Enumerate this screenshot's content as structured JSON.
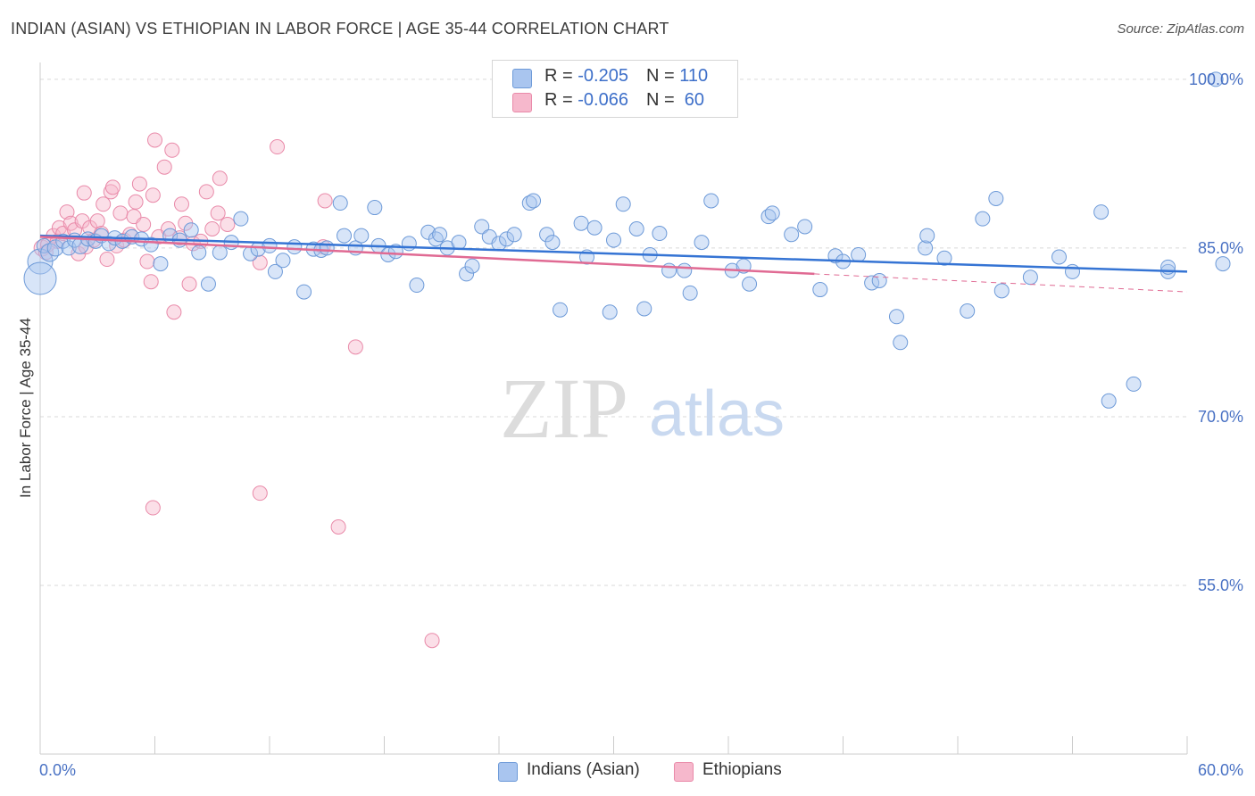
{
  "title": "INDIAN (ASIAN) VS ETHIOPIAN IN LABOR FORCE | AGE 35-44 CORRELATION CHART",
  "source": "Source: ZipAtlas.com",
  "watermark": {
    "zip": "ZIP",
    "atlas": "atlas"
  },
  "legend": {
    "rows": [
      {
        "r_label": "R = ",
        "r_value": "-0.205",
        "n_label": "N = ",
        "n_value": "110"
      },
      {
        "r_label": "R = ",
        "r_value": "-0.066",
        "n_label": "N = ",
        "n_value": " 60"
      }
    ]
  },
  "bottom_legend": [
    "Indians (Asian)",
    "Ethiopians"
  ],
  "colors": {
    "blue_fill": "#a9c5ef",
    "blue_stroke": "#6d9ad8",
    "blue_line": "#3574d4",
    "pink_fill": "#f6b8cc",
    "pink_stroke": "#e98aa9",
    "pink_line": "#e06a93",
    "label": "#4a72c4",
    "grid": "#d9d9d9"
  },
  "chart_data": {
    "type": "scatter",
    "title": "INDIAN (ASIAN) VS ETHIOPIAN IN LABOR FORCE | AGE 35-44 CORRELATION CHART",
    "xlabel": "",
    "ylabel": "In Labor Force | Age 35-44",
    "xlim": [
      0,
      60
    ],
    "ylim": [
      40,
      101.5
    ],
    "x_tick_labels": [
      "0.0%",
      "60.0%"
    ],
    "y_ticks": [
      55,
      70,
      85,
      100
    ],
    "y_tick_labels": [
      "55.0%",
      "70.0%",
      "85.0%",
      "100.0%"
    ],
    "grid": true,
    "legend_position": "top-center",
    "series": [
      {
        "name": "Indians (Asian)",
        "color": "#a9c5ef",
        "R": -0.205,
        "N": 110,
        "trend": {
          "x": [
            0,
            60
          ],
          "y": [
            86.1,
            82.9
          ]
        },
        "points": [
          [
            0.0,
            83.8,
            14
          ],
          [
            0.0,
            82.3,
            18
          ],
          [
            0.2,
            85.2,
            8
          ],
          [
            0.5,
            84.6,
            10
          ],
          [
            0.8,
            85.0,
            9
          ],
          [
            1.2,
            85.6,
            8
          ],
          [
            1.5,
            85.0,
            8
          ],
          [
            1.8,
            85.7,
            8
          ],
          [
            2.1,
            85.2,
            9
          ],
          [
            2.5,
            85.8,
            8
          ],
          [
            2.9,
            85.6,
            8
          ],
          [
            3.2,
            86.1,
            8
          ],
          [
            3.6,
            85.4,
            8
          ],
          [
            3.9,
            85.9,
            8
          ],
          [
            4.3,
            85.6,
            8
          ],
          [
            4.8,
            86.0,
            8
          ],
          [
            5.3,
            85.8,
            8
          ],
          [
            5.8,
            85.3,
            8
          ],
          [
            6.3,
            83.6,
            8
          ],
          [
            6.8,
            86.1,
            8
          ],
          [
            7.3,
            85.7,
            8
          ],
          [
            7.9,
            86.6,
            8
          ],
          [
            8.3,
            84.6,
            8
          ],
          [
            8.8,
            81.8,
            8
          ],
          [
            9.4,
            84.6,
            8
          ],
          [
            10.0,
            85.5,
            8
          ],
          [
            10.5,
            87.6,
            8
          ],
          [
            11.0,
            84.5,
            8
          ],
          [
            11.4,
            84.9,
            8
          ],
          [
            12.0,
            85.2,
            8
          ],
          [
            12.3,
            82.9,
            8
          ],
          [
            12.7,
            83.9,
            8
          ],
          [
            13.3,
            85.1,
            8
          ],
          [
            13.8,
            81.1,
            8
          ],
          [
            14.3,
            84.9,
            8
          ],
          [
            14.7,
            84.8,
            8
          ],
          [
            15.0,
            85.0,
            8
          ],
          [
            15.7,
            89.0,
            8
          ],
          [
            15.9,
            86.1,
            8
          ],
          [
            16.5,
            85.0,
            8
          ],
          [
            16.8,
            86.1,
            8
          ],
          [
            17.5,
            88.6,
            8
          ],
          [
            17.7,
            85.2,
            8
          ],
          [
            18.2,
            84.4,
            8
          ],
          [
            18.6,
            84.7,
            8
          ],
          [
            19.3,
            85.4,
            8
          ],
          [
            19.7,
            81.7,
            8
          ],
          [
            20.3,
            86.4,
            8
          ],
          [
            20.7,
            85.8,
            8
          ],
          [
            20.9,
            86.2,
            8
          ],
          [
            21.3,
            85.0,
            8
          ],
          [
            21.9,
            85.5,
            8
          ],
          [
            22.3,
            82.7,
            8
          ],
          [
            22.6,
            83.4,
            8
          ],
          [
            23.1,
            86.9,
            8
          ],
          [
            23.5,
            86.0,
            8
          ],
          [
            24.0,
            85.4,
            8
          ],
          [
            24.4,
            85.8,
            8
          ],
          [
            24.8,
            86.2,
            8
          ],
          [
            25.6,
            89.0,
            8
          ],
          [
            25.8,
            89.2,
            8
          ],
          [
            26.5,
            86.2,
            8
          ],
          [
            26.8,
            85.5,
            8
          ],
          [
            27.2,
            79.5,
            8
          ],
          [
            28.3,
            87.2,
            8
          ],
          [
            28.6,
            84.2,
            8
          ],
          [
            29.0,
            86.8,
            8
          ],
          [
            29.8,
            79.3,
            8
          ],
          [
            30.0,
            85.7,
            8
          ],
          [
            30.5,
            88.9,
            8
          ],
          [
            31.2,
            86.7,
            8
          ],
          [
            31.6,
            79.6,
            8
          ],
          [
            31.9,
            84.4,
            8
          ],
          [
            32.4,
            86.3,
            8
          ],
          [
            32.9,
            83.0,
            8
          ],
          [
            33.7,
            83.0,
            8
          ],
          [
            34.0,
            81.0,
            8
          ],
          [
            34.6,
            85.5,
            8
          ],
          [
            35.1,
            89.2,
            8
          ],
          [
            36.2,
            83.0,
            8
          ],
          [
            36.8,
            83.4,
            8
          ],
          [
            37.1,
            81.8,
            8
          ],
          [
            38.1,
            87.8,
            8
          ],
          [
            38.3,
            88.1,
            8
          ],
          [
            39.3,
            86.2,
            8
          ],
          [
            40.0,
            86.9,
            8
          ],
          [
            40.8,
            81.3,
            8
          ],
          [
            41.6,
            84.3,
            8
          ],
          [
            42.0,
            83.8,
            8
          ],
          [
            42.8,
            84.4,
            8
          ],
          [
            43.5,
            81.9,
            8
          ],
          [
            43.9,
            82.1,
            8
          ],
          [
            44.8,
            78.9,
            8
          ],
          [
            45.0,
            76.6,
            8
          ],
          [
            46.3,
            85.0,
            8
          ],
          [
            46.4,
            86.1,
            8
          ],
          [
            47.3,
            84.1,
            8
          ],
          [
            48.5,
            79.4,
            8
          ],
          [
            49.3,
            87.6,
            8
          ],
          [
            50.0,
            89.4,
            8
          ],
          [
            50.3,
            81.2,
            8
          ],
          [
            51.8,
            82.4,
            8
          ],
          [
            53.3,
            84.2,
            8
          ],
          [
            54.0,
            82.9,
            8
          ],
          [
            55.5,
            88.2,
            8
          ],
          [
            55.9,
            71.4,
            8
          ],
          [
            57.2,
            72.9,
            8
          ],
          [
            59.0,
            82.9,
            8
          ],
          [
            59.0,
            83.3,
            8
          ],
          [
            62.0,
            83.6,
            8
          ],
          [
            61.5,
            100.0,
            8
          ]
        ]
      },
      {
        "name": "Ethiopians",
        "color": "#f6b8cc",
        "R": -0.066,
        "N": 60,
        "trend": {
          "x": [
            0,
            40.5
          ],
          "y": [
            86.0,
            82.7
          ]
        },
        "trend_dashed": {
          "x": [
            40.5,
            60
          ],
          "y": [
            82.7,
            81.1
          ]
        },
        "points": [
          [
            0.1,
            85.0,
            9
          ],
          [
            0.3,
            84.6,
            8
          ],
          [
            0.4,
            85.3,
            8
          ],
          [
            0.7,
            86.1,
            8
          ],
          [
            0.9,
            85.6,
            8
          ],
          [
            1.0,
            86.8,
            8
          ],
          [
            1.2,
            86.3,
            8
          ],
          [
            1.4,
            88.2,
            8
          ],
          [
            1.6,
            87.2,
            8
          ],
          [
            1.8,
            86.6,
            8
          ],
          [
            2.0,
            84.5,
            8
          ],
          [
            2.2,
            87.4,
            8
          ],
          [
            2.3,
            89.9,
            8
          ],
          [
            2.4,
            85.1,
            8
          ],
          [
            2.6,
            86.8,
            8
          ],
          [
            2.8,
            85.7,
            8
          ],
          [
            3.0,
            87.4,
            8
          ],
          [
            3.2,
            86.3,
            8
          ],
          [
            3.3,
            88.9,
            8
          ],
          [
            3.5,
            84.0,
            8
          ],
          [
            3.7,
            90.0,
            8
          ],
          [
            3.8,
            90.4,
            8
          ],
          [
            4.0,
            85.2,
            8
          ],
          [
            4.2,
            88.1,
            8
          ],
          [
            4.4,
            85.7,
            8
          ],
          [
            4.7,
            86.2,
            8
          ],
          [
            4.9,
            87.8,
            8
          ],
          [
            5.0,
            89.1,
            8
          ],
          [
            5.2,
            90.7,
            8
          ],
          [
            5.4,
            87.1,
            8
          ],
          [
            5.6,
            83.8,
            8
          ],
          [
            5.8,
            82.0,
            8
          ],
          [
            5.9,
            89.7,
            8
          ],
          [
            6.0,
            94.6,
            8
          ],
          [
            6.2,
            86.0,
            8
          ],
          [
            6.5,
            92.2,
            8
          ],
          [
            6.7,
            86.7,
            8
          ],
          [
            6.9,
            93.7,
            8
          ],
          [
            7.0,
            79.3,
            8
          ],
          [
            7.3,
            85.9,
            8
          ],
          [
            7.4,
            88.9,
            8
          ],
          [
            7.6,
            87.2,
            8
          ],
          [
            7.8,
            81.8,
            8
          ],
          [
            8.0,
            85.4,
            8
          ],
          [
            8.4,
            85.6,
            8
          ],
          [
            8.7,
            90.0,
            8
          ],
          [
            9.0,
            86.7,
            8
          ],
          [
            9.3,
            88.1,
            8
          ],
          [
            9.4,
            91.2,
            8
          ],
          [
            9.8,
            87.1,
            8
          ],
          [
            11.5,
            83.7,
            8
          ],
          [
            12.4,
            94.0,
            8
          ],
          [
            14.8,
            85.1,
            8
          ],
          [
            14.9,
            89.2,
            8
          ],
          [
            16.5,
            76.2,
            8
          ],
          [
            5.9,
            61.9,
            8
          ],
          [
            11.5,
            63.2,
            8
          ],
          [
            15.6,
            60.2,
            8
          ],
          [
            20.5,
            50.1,
            8
          ],
          [
            32.4,
            100.0,
            8
          ]
        ]
      }
    ]
  }
}
